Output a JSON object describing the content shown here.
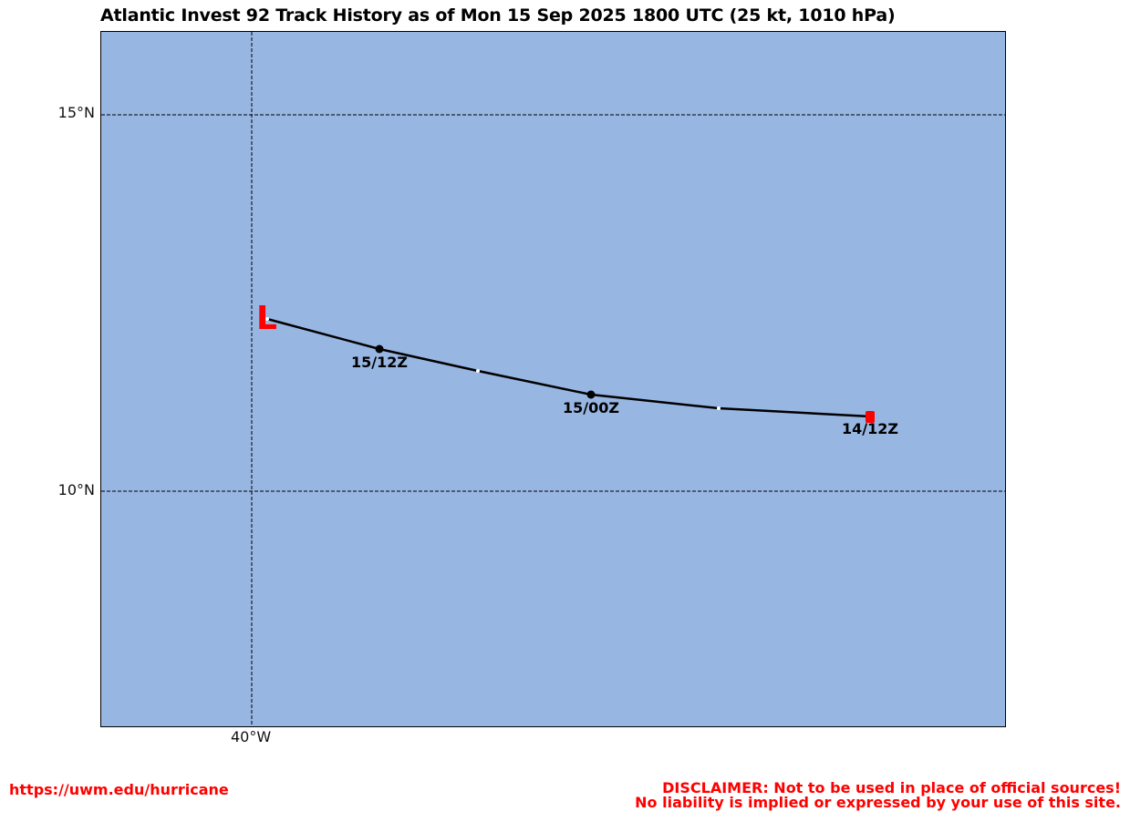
{
  "title": "Atlantic Invest 92 Track History as of Mon 15 Sep 2025 1800 UTC (25 kt, 1010 hPa)",
  "map": {
    "ocean_color": "#98b6e2",
    "track_color": "#000000",
    "current_marker_color": "#ff0000",
    "grid": {
      "latitude_labels": [
        "15°N",
        "10°N"
      ],
      "longitude_labels": [
        "40°W"
      ]
    },
    "current_position": {
      "symbol": "L",
      "lat": 12.3,
      "lon": -39.8
    },
    "track_points": [
      {
        "lat": 10.98,
        "lon": -31.8,
        "type": "start-marker"
      },
      {
        "lat": 11.08,
        "lon": -34.2,
        "type": "minor"
      },
      {
        "lat": 11.27,
        "lon": -37.1,
        "type": "fix"
      },
      {
        "lat": 11.6,
        "lon": -38.6,
        "type": "minor"
      },
      {
        "lat": 11.9,
        "lon": -39.35,
        "type": "fix"
      },
      {
        "lat": 12.28,
        "lon": -40.1,
        "type": "minor"
      }
    ],
    "time_labels": [
      {
        "text": "15/12Z"
      },
      {
        "text": "15/00Z"
      },
      {
        "text": "14/12Z"
      }
    ]
  },
  "footer": {
    "url": "https://uwm.edu/hurricane",
    "disclaimer_line1": "DISCLAIMER: Not to be used in place of official sources!",
    "disclaimer_line2": "No liability is implied or expressed by your use of this site."
  }
}
